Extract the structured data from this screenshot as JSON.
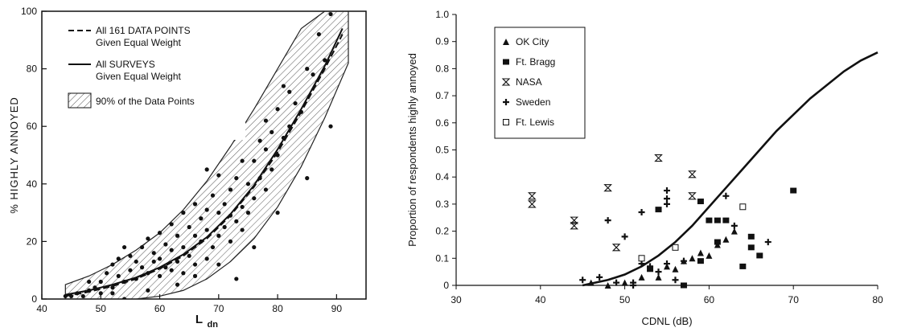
{
  "chart_data": [
    {
      "type": "scatter",
      "title": "",
      "xlabel": "L",
      "xlabel_sub": "dn",
      "ylabel": "% HIGHLY ANNOYED",
      "xlim": [
        40,
        95
      ],
      "ylim": [
        0,
        100
      ],
      "xticks": [
        40,
        50,
        60,
        70,
        80,
        90
      ],
      "yticks": [
        0,
        20,
        40,
        60,
        80,
        100
      ],
      "grid": false,
      "legend_position": "top-left",
      "legend": [
        {
          "line1": "All 161 DATA POINTS",
          "line2": "Given Equal Weight",
          "style": "dashed"
        },
        {
          "line1": "All SURVEYS",
          "line2": "Given Equal Weight",
          "style": "solid"
        },
        {
          "line1": "90% of the Data Points",
          "line2": "",
          "style": "hatched"
        }
      ],
      "band": {
        "x": [
          44,
          48,
          52,
          56,
          60,
          64,
          68,
          72,
          76,
          80,
          84,
          88,
          92
        ],
        "upper": [
          5,
          8,
          12,
          17,
          23,
          31,
          41,
          53,
          66,
          80,
          94,
          100,
          100
        ],
        "lower": [
          0,
          0,
          0,
          0,
          1,
          3,
          7,
          13,
          21,
          32,
          46,
          63,
          82
        ]
      },
      "series": [
        {
          "name": "All 161 DATA POINTS",
          "x": [
            44,
            48,
            52,
            56,
            60,
            64,
            68,
            72,
            76,
            80,
            84,
            88,
            91
          ],
          "y": [
            1,
            2.5,
            4.5,
            7,
            10.5,
            15,
            21,
            29,
            39,
            51,
            65,
            80,
            92
          ]
        },
        {
          "name": "All SURVEYS",
          "x": [
            44,
            48,
            52,
            56,
            60,
            64,
            68,
            72,
            76,
            80,
            84,
            88,
            91
          ],
          "y": [
            1.5,
            3,
            5,
            7.5,
            11,
            15.5,
            21.5,
            29.5,
            39.5,
            52,
            66,
            81,
            94
          ]
        }
      ],
      "points": {
        "x": [
          44,
          45,
          46,
          47,
          48,
          48,
          49,
          50,
          50,
          51,
          52,
          52,
          53,
          53,
          54,
          54,
          55,
          55,
          56,
          56,
          57,
          57,
          58,
          58,
          59,
          59,
          60,
          60,
          60,
          61,
          61,
          62,
          62,
          62,
          63,
          63,
          64,
          64,
          64,
          65,
          65,
          66,
          66,
          66,
          67,
          67,
          68,
          68,
          68,
          69,
          69,
          70,
          70,
          70,
          71,
          71,
          72,
          72,
          72,
          73,
          73,
          74,
          74,
          74,
          75,
          75,
          76,
          76,
          77,
          77,
          78,
          78,
          78,
          79,
          79,
          80,
          80,
          81,
          81,
          82,
          82,
          83,
          84,
          85,
          86,
          87,
          88,
          89,
          68,
          73,
          54,
          52,
          58,
          63,
          66,
          70,
          76,
          80,
          85,
          89
        ],
        "y": [
          1,
          1,
          2,
          1,
          3,
          6,
          4,
          6,
          2,
          9,
          4,
          12,
          8,
          14,
          6,
          18,
          10,
          15,
          7,
          13,
          11,
          18,
          9,
          21,
          13,
          16,
          8,
          14,
          23,
          11,
          19,
          10,
          17,
          26,
          13,
          22,
          9,
          18,
          30,
          15,
          25,
          12,
          22,
          33,
          20,
          28,
          14,
          24,
          31,
          18,
          36,
          22,
          30,
          43,
          25,
          33,
          20,
          29,
          38,
          27,
          42,
          24,
          32,
          48,
          30,
          40,
          35,
          48,
          42,
          55,
          38,
          52,
          62,
          45,
          58,
          50,
          66,
          56,
          74,
          60,
          72,
          68,
          65,
          80,
          78,
          92,
          83,
          99,
          45,
          7,
          0,
          2,
          3,
          5,
          8,
          12,
          18,
          30,
          42,
          60
        ]
      }
    },
    {
      "type": "scatter",
      "title": "",
      "xlabel": "CDNL (dB)",
      "ylabel": "Proportion of respondents highly annoyed",
      "xlim": [
        30,
        80
      ],
      "ylim": [
        0,
        1.0
      ],
      "xticks": [
        30,
        40,
        50,
        60,
        70,
        80
      ],
      "yticks": [
        0,
        0.1,
        0.2,
        0.3,
        0.4,
        0.5,
        0.6,
        0.7,
        0.8,
        0.9,
        1.0
      ],
      "grid": false,
      "legend_position": "top-left",
      "curve": {
        "x": [
          45,
          48,
          50,
          52,
          54,
          56,
          58,
          60,
          62,
          64,
          66,
          68,
          70,
          72,
          74,
          76,
          78,
          80
        ],
        "y": [
          0.0,
          0.02,
          0.04,
          0.07,
          0.11,
          0.16,
          0.22,
          0.29,
          0.36,
          0.43,
          0.5,
          0.57,
          0.63,
          0.69,
          0.74,
          0.79,
          0.83,
          0.86
        ]
      },
      "series": [
        {
          "name": "OK City",
          "marker": "triangle",
          "x": [
            46,
            48,
            50,
            52,
            54,
            55,
            56,
            57,
            58,
            59,
            60,
            61,
            62,
            63
          ],
          "y": [
            0.01,
            0.0,
            0.01,
            0.03,
            0.03,
            0.07,
            0.06,
            0.09,
            0.1,
            0.12,
            0.11,
            0.15,
            0.17,
            0.2
          ]
        },
        {
          "name": "Ft. Bragg",
          "marker": "square",
          "x": [
            53,
            54,
            57,
            59,
            60,
            61,
            61,
            62,
            64,
            65,
            65,
            66,
            70,
            59
          ],
          "y": [
            0.06,
            0.28,
            0.0,
            0.31,
            0.24,
            0.24,
            0.16,
            0.24,
            0.07,
            0.14,
            0.18,
            0.11,
            0.35,
            0.09
          ]
        },
        {
          "name": "NASA",
          "marker": "hourglass",
          "x": [
            39,
            39,
            44,
            44,
            48,
            49,
            54,
            58,
            58
          ],
          "y": [
            0.33,
            0.3,
            0.24,
            0.22,
            0.36,
            0.14,
            0.47,
            0.41,
            0.33
          ]
        },
        {
          "name": "Sweden",
          "marker": "plus",
          "x": [
            45,
            47,
            48,
            49,
            50,
            51,
            52,
            53,
            54,
            55,
            55,
            55,
            56,
            57,
            62,
            63,
            67,
            52,
            55,
            51
          ],
          "y": [
            0.02,
            0.03,
            0.24,
            0.01,
            0.18,
            0.0,
            0.27,
            0.07,
            0.05,
            0.35,
            0.32,
            0.3,
            0.02,
            0.09,
            0.33,
            0.22,
            0.16,
            0.08,
            0.08,
            0.01
          ]
        },
        {
          "name": "Ft. Lewis",
          "marker": "open-square",
          "x": [
            52,
            56,
            64
          ],
          "y": [
            0.1,
            0.14,
            0.29
          ]
        }
      ]
    }
  ]
}
